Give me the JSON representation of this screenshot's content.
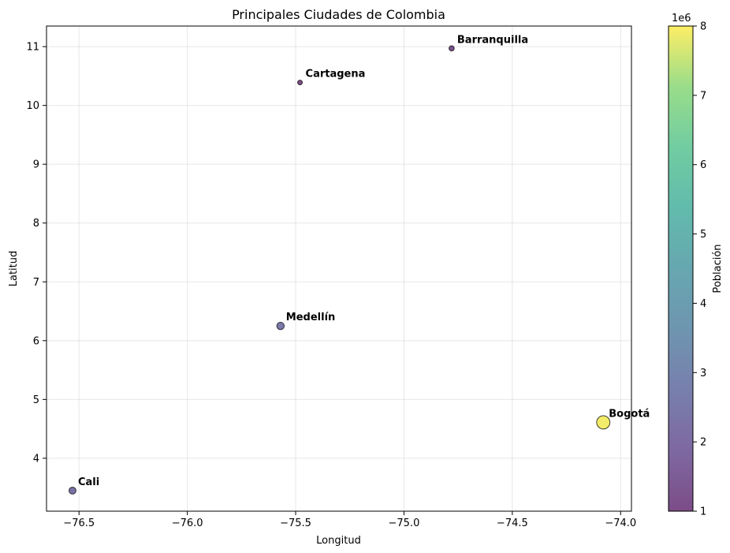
{
  "chart_data": {
    "type": "scatter",
    "title": "Principales Ciudades de Colombia",
    "xlabel": "Longitud",
    "ylabel": "Latitud",
    "xlim": [
      -76.65,
      -73.95
    ],
    "ylim": [
      3.1,
      11.35
    ],
    "xticks": [
      -76.5,
      -76.0,
      -75.5,
      -75.0,
      -74.5,
      -74.0
    ],
    "xtick_labels": [
      "−76.5",
      "−76.0",
      "−75.5",
      "−75.0",
      "−74.5",
      "−74.0"
    ],
    "yticks": [
      4,
      5,
      6,
      7,
      8,
      9,
      10,
      11
    ],
    "ytick_labels": [
      "4",
      "5",
      "6",
      "7",
      "8",
      "9",
      "10",
      "11"
    ],
    "grid": true,
    "colorbar": {
      "label": "Población",
      "min": 1000000,
      "max": 8000000,
      "ticks": [
        1,
        2,
        3,
        4,
        5,
        6,
        7,
        8
      ],
      "tick_labels": [
        "1",
        "2",
        "3",
        "4",
        "5",
        "6",
        "7",
        "8"
      ],
      "offset_text": "1e6",
      "colormap": "viridis"
    },
    "points": [
      {
        "name": "Bogotá",
        "x": -74.08,
        "y": 4.61,
        "population": 7900000
      },
      {
        "name": "Medellín",
        "x": -75.57,
        "y": 6.25,
        "population": 2500000
      },
      {
        "name": "Cali",
        "x": -76.53,
        "y": 3.45,
        "population": 2200000
      },
      {
        "name": "Barranquilla",
        "x": -74.78,
        "y": 10.97,
        "population": 1200000
      },
      {
        "name": "Cartagena",
        "x": -75.48,
        "y": 10.39,
        "population": 1000000
      }
    ]
  }
}
